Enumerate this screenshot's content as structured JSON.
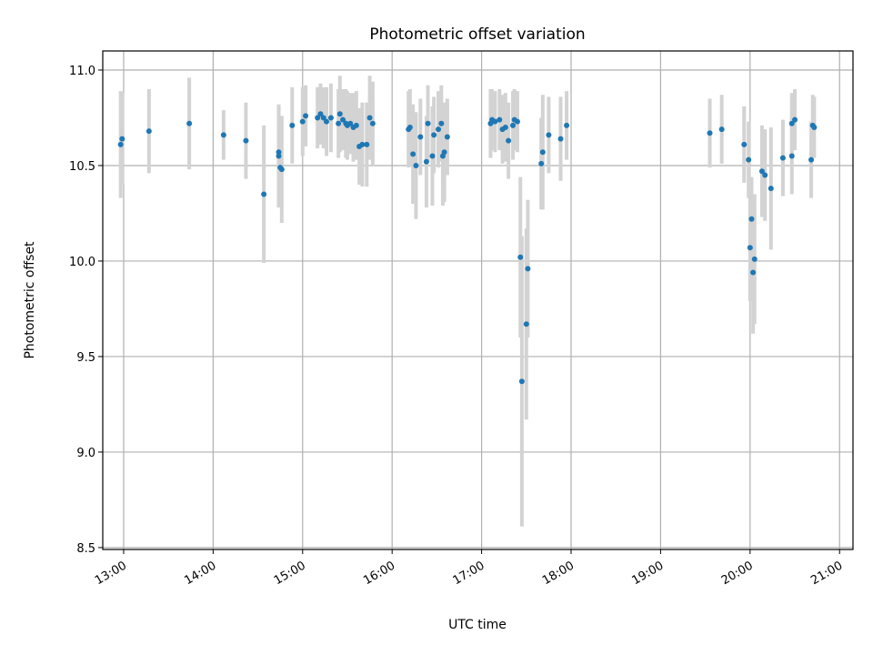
{
  "chart_data": {
    "type": "scatter",
    "title": "Photometric offset variation",
    "xlabel": "UTC time",
    "ylabel": "Photometric offset",
    "x_ticks": [
      "13:00",
      "14:00",
      "15:00",
      "16:00",
      "17:00",
      "18:00",
      "19:00",
      "20:00",
      "21:00"
    ],
    "y_ticks": [
      "8.5",
      "9.0",
      "9.5",
      "10.0",
      "10.5",
      "11.0"
    ],
    "xlim": [
      "12:46",
      "21:09"
    ],
    "ylim": [
      8.49,
      11.1
    ],
    "grid": true,
    "colors": {
      "points": "#1f77b4",
      "errorbars": "#d3d3d3",
      "grid": "#b0b0b0"
    },
    "series": [
      {
        "x": [
          "12:58",
          "12:59",
          "13:17",
          "13:44",
          "14:07",
          "14:22",
          "14:34",
          "14:44",
          "14:44",
          "14:45",
          "14:46",
          "14:53",
          "15:00",
          "15:02",
          "15:10",
          "15:12",
          "15:14",
          "15:16",
          "15:19",
          "15:24",
          "15:25",
          "15:27",
          "15:29",
          "15:30",
          "15:32",
          "15:34",
          "15:36",
          "15:38",
          "15:40",
          "15:43",
          "15:45",
          "15:47",
          "16:11",
          "16:12",
          "16:14",
          "16:16",
          "16:19",
          "16:23",
          "16:24",
          "16:27",
          "16:28",
          "16:31",
          "16:33",
          "16:34",
          "16:35",
          "16:37",
          "17:06",
          "17:07",
          "17:09",
          "17:12",
          "17:14",
          "17:16",
          "17:18",
          "17:21",
          "17:22",
          "17:24",
          "17:26",
          "17:27",
          "17:30",
          "17:31",
          "17:40",
          "17:41",
          "17:45",
          "17:53",
          "17:57",
          "19:33",
          "19:41",
          "19:56",
          "19:59",
          "20:00",
          "20:01",
          "20:02",
          "20:03",
          "20:08",
          "20:10",
          "20:14",
          "20:22",
          "20:28",
          "20:28",
          "20:30",
          "20:41",
          "20:42",
          "20:43"
        ],
        "y": [
          10.61,
          10.64,
          10.68,
          10.72,
          10.66,
          10.63,
          10.35,
          10.57,
          10.55,
          10.49,
          10.48,
          10.71,
          10.73,
          10.76,
          10.75,
          10.77,
          10.75,
          10.73,
          10.75,
          10.72,
          10.77,
          10.74,
          10.72,
          10.71,
          10.72,
          10.7,
          10.71,
          10.6,
          10.61,
          10.61,
          10.75,
          10.72,
          10.69,
          10.7,
          10.56,
          10.5,
          10.65,
          10.52,
          10.72,
          10.55,
          10.66,
          10.69,
          10.72,
          10.55,
          10.57,
          10.65,
          10.72,
          10.74,
          10.73,
          10.74,
          10.69,
          10.7,
          10.63,
          10.71,
          10.74,
          10.73,
          10.02,
          9.37,
          9.67,
          9.96,
          10.51,
          10.57,
          10.66,
          10.64,
          10.71,
          10.67,
          10.69,
          10.61,
          10.53,
          10.07,
          10.22,
          9.94,
          10.01,
          10.47,
          10.45,
          10.38,
          10.54,
          10.55,
          10.72,
          10.74,
          10.53,
          10.71,
          10.7
        ],
        "yerr": [
          0.28,
          0.24,
          0.22,
          0.24,
          0.13,
          0.2,
          0.36,
          0.24,
          0.27,
          0.2,
          0.28,
          0.2,
          0.18,
          0.16,
          0.16,
          0.16,
          0.16,
          0.18,
          0.18,
          0.18,
          0.2,
          0.16,
          0.18,
          0.18,
          0.16,
          0.18,
          0.18,
          0.2,
          0.22,
          0.22,
          0.22,
          0.22,
          0.2,
          0.2,
          0.26,
          0.28,
          0.2,
          0.24,
          0.2,
          0.26,
          0.2,
          0.2,
          0.2,
          0.26,
          0.26,
          0.2,
          0.18,
          0.16,
          0.16,
          0.16,
          0.18,
          0.18,
          0.2,
          0.18,
          0.16,
          0.16,
          0.42,
          0.76,
          0.5,
          0.36,
          0.24,
          0.3,
          0.2,
          0.22,
          0.18,
          0.18,
          0.18,
          0.2,
          0.2,
          0.28,
          0.22,
          0.32,
          0.34,
          0.24,
          0.24,
          0.32,
          0.2,
          0.2,
          0.16,
          0.16,
          0.2,
          0.16,
          0.16
        ]
      }
    ]
  }
}
